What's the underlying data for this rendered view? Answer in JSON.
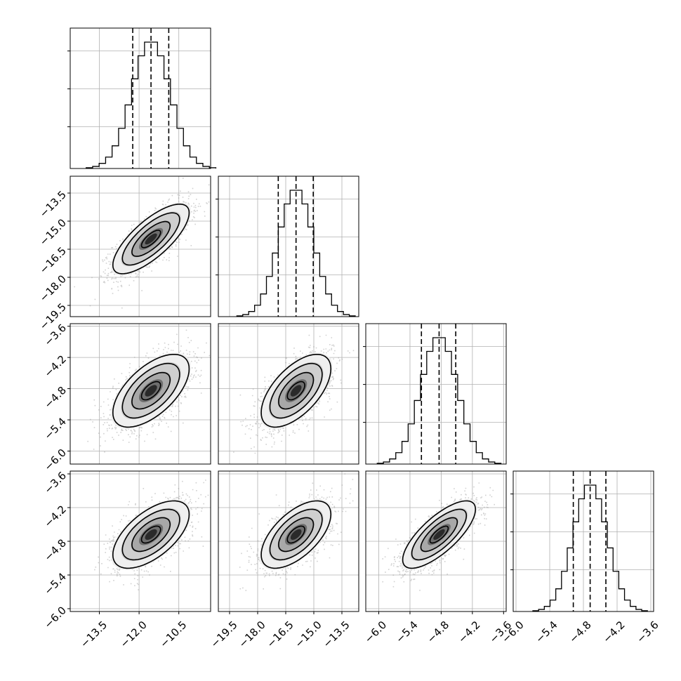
{
  "chart_data": {
    "type": "corner",
    "grid": true,
    "parameters": [
      {
        "range": [
          -14.6,
          -9.3
        ],
        "ticks": [
          -13.5,
          -12.0,
          -10.5
        ],
        "tick_labels": [
          "−13.5",
          "−12.0",
          "−10.5"
        ],
        "mean": -11.55,
        "sd": 0.72,
        "quantiles": [
          -12.24,
          -11.55,
          -10.88
        ]
      },
      {
        "range": [
          -20.1,
          -12.6
        ],
        "ticks": [
          -19.5,
          -18.0,
          -16.5,
          -15.0,
          -13.5
        ],
        "tick_labels": [
          "−19.5",
          "−18.0",
          "−16.5",
          "−15.0",
          "−13.5"
        ],
        "mean": -15.95,
        "sd": 0.93,
        "quantiles": [
          -16.9,
          -15.95,
          -15.03
        ]
      },
      {
        "range": [
          -6.25,
          -3.55
        ],
        "ticks": [
          -6.0,
          -5.4,
          -4.8,
          -4.2,
          -3.6
        ],
        "tick_labels": [
          "−6.0",
          "−5.4",
          "−4.8",
          "−4.2",
          "−3.6"
        ],
        "mean": -4.84,
        "sd": 0.35,
        "quantiles": [
          -5.18,
          -4.84,
          -4.52
        ]
      },
      {
        "range": [
          -6.05,
          -3.55
        ],
        "ticks": [
          -6.0,
          -5.4,
          -4.8,
          -4.2,
          -3.6
        ],
        "tick_labels": [
          "−6.0",
          "−5.4",
          "−4.8",
          "−4.2",
          "−3.6"
        ],
        "mean": -4.68,
        "sd": 0.3,
        "quantiles": [
          -4.98,
          -4.68,
          -4.4
        ]
      }
    ],
    "correlations": [
      [
        1.0,
        0.75,
        0.6,
        0.6
      ],
      [
        0.75,
        1.0,
        0.6,
        0.6
      ],
      [
        0.6,
        0.6,
        1.0,
        0.75
      ],
      [
        0.6,
        0.6,
        0.75,
        1.0
      ]
    ],
    "contour_levels_sigma": [
      0.5,
      1.0,
      1.5,
      2.0
    ],
    "histogram_bins": 20,
    "quantile_levels": [
      0.16,
      0.5,
      0.84
    ]
  }
}
